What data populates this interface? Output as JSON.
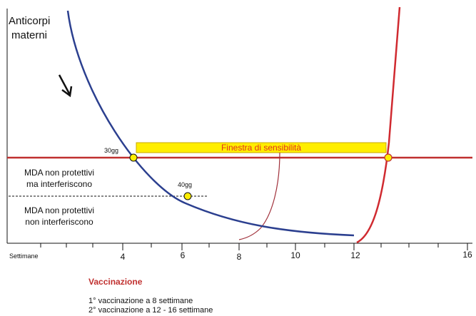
{
  "diagram": {
    "y_axis_label_line1": "Anticorpi",
    "y_axis_label_line2": "materni",
    "protective_window_label": "Finestra di sensibilità",
    "point_labels": {
      "first": "30gg",
      "second": "40gg"
    },
    "region_labels": {
      "interfering_line1": "MDA non protettivi",
      "interfering_line2": "ma interferiscono",
      "non_interfering_line1": "MDA non protettivi",
      "non_interfering_line2": "non interferiscono"
    },
    "x_axis": {
      "unit_label": "Settimane",
      "ticks": [
        "4",
        "6",
        "8",
        "10",
        "12",
        "16"
      ]
    }
  },
  "vaccination": {
    "title": "Vaccinazione",
    "items": [
      "1° vaccinazione a 8 settimane",
      "2° vaccinazione a 12 - 16 settimane"
    ]
  },
  "colors": {
    "maternal_curve": "#2b3f8f",
    "vaccine_curve": "#d02a30",
    "threshold_line": "#c0302f",
    "window_fill": "#ffee00",
    "window_border": "#c9a800",
    "window_text": "#e0301e",
    "marker_fill": "#ffee00",
    "connector": "#a0303a"
  }
}
